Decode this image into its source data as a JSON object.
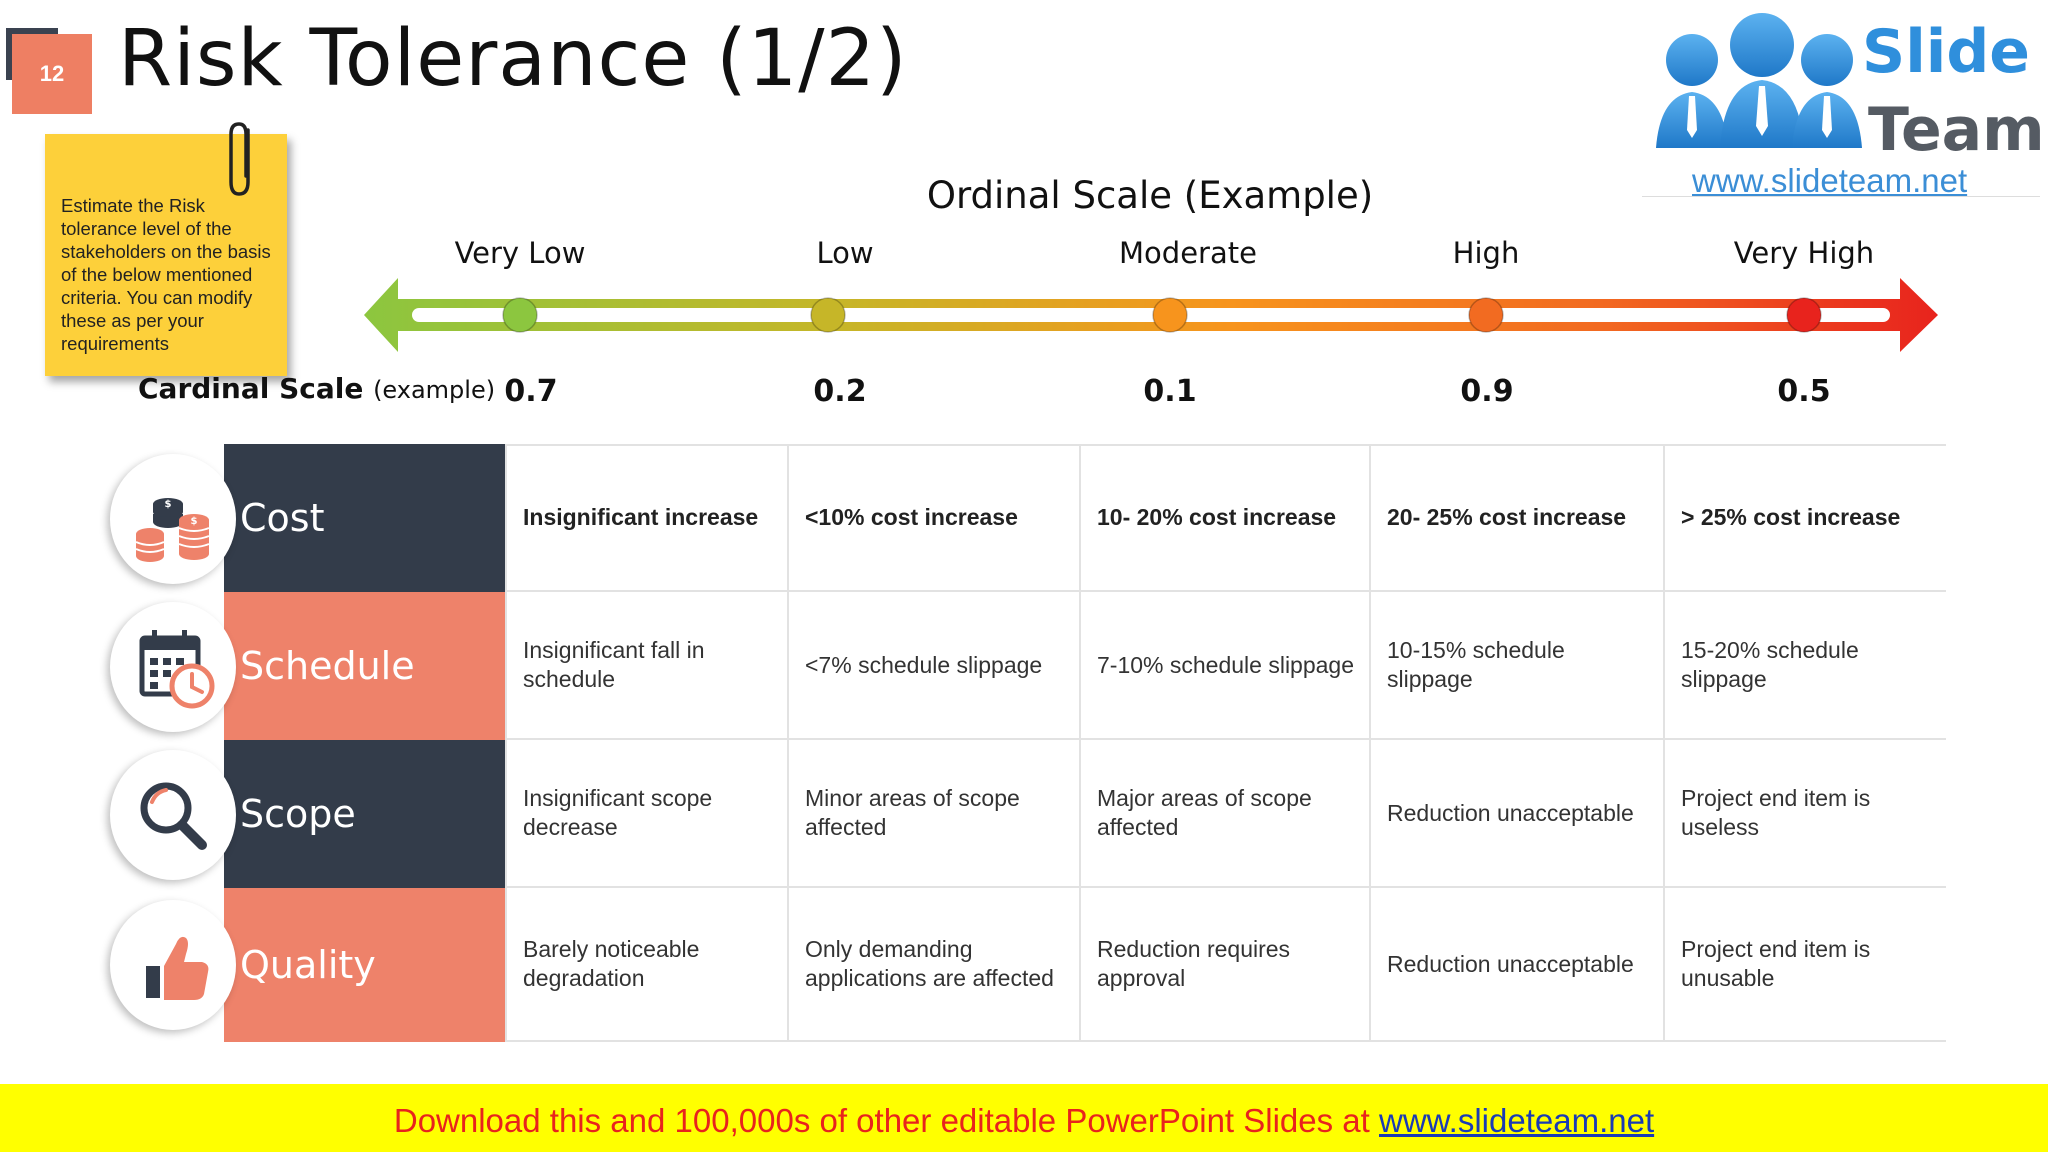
{
  "slide": {
    "number": "12",
    "title": "Risk Tolerance (1/2)"
  },
  "logo": {
    "word1": "Slide",
    "word2": "Team",
    "url": "www.slideteam.net"
  },
  "note": {
    "text": "Estimate the Risk tolerance level of the stakeholders on the basis of the below mentioned criteria. You can modify these as per your requirements"
  },
  "scale": {
    "ordinal_title": "Ordinal Scale (Example)",
    "levels": [
      "Very Low",
      "Low",
      "Moderate",
      "High",
      "Very High"
    ],
    "cardinal_label": "Cardinal Scale",
    "cardinal_sub": "(example)",
    "cardinal_values": [
      "0.7",
      "0.2",
      "0.1",
      "0.9",
      "0.5"
    ],
    "colors": [
      "#8cc63f",
      "#c6b628",
      "#f7941d",
      "#f26b21",
      "#e8231d"
    ]
  },
  "rows": [
    {
      "label": "Cost",
      "icon": "coins-icon",
      "cells": [
        "Insignificant increase",
        "<10% cost increase",
        "10- 20% cost increase",
        "20- 25% cost increase",
        "> 25% cost increase"
      ]
    },
    {
      "label": "Schedule",
      "icon": "calendar-clock-icon",
      "cells": [
        "Insignificant fall in schedule",
        "<7% schedule slippage",
        "7-10% schedule slippage",
        "10-15% schedule slippage",
        "15-20% schedule slippage"
      ]
    },
    {
      "label": "Scope",
      "icon": "magnifier-icon",
      "cells": [
        "Insignificant scope decrease",
        "Minor areas of scope affected",
        "Major areas of scope affected",
        "Reduction unacceptable",
        "Project end item is useless"
      ]
    },
    {
      "label": "Quality",
      "icon": "thumbs-up-icon",
      "cells": [
        "Barely noticeable degradation",
        "Only demanding applications are affected",
        "Reduction requires approval",
        "Reduction unacceptable",
        "Project end item is unusable"
      ]
    }
  ],
  "banner": {
    "text": "Download this and 100,000s of other editable PowerPoint Slides at ",
    "link": "www.slideteam.net"
  }
}
